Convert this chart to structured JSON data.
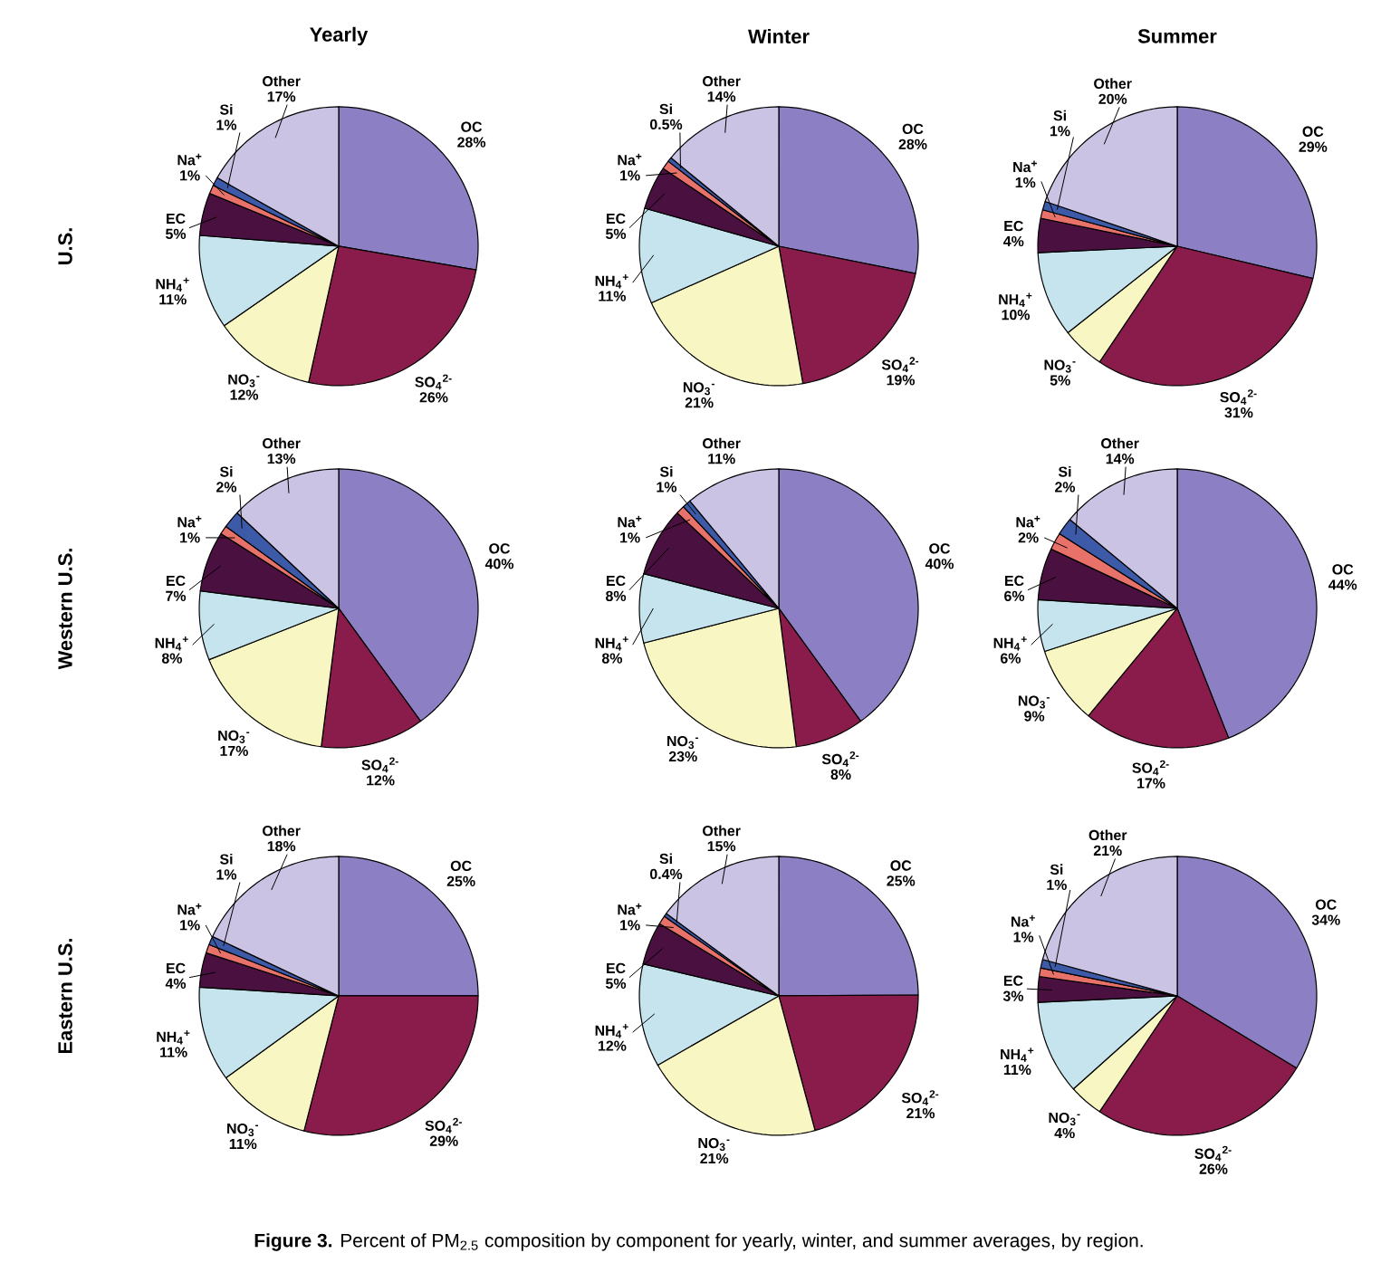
{
  "chart_data": [
    {
      "type": "pie",
      "title": "Yearly",
      "ylabel": "U.S.",
      "categories": [
        "OC",
        "SO$_{4}$$^{2-}$",
        "NO$_{3}$$^{-}$",
        "NH$_{4}$$^{+}$",
        "EC",
        "Na$^{+}$",
        "Si",
        "Other"
      ],
      "values": [
        28,
        26,
        12,
        11,
        5,
        1,
        1,
        17
      ],
      "value_labels": [
        "28%",
        "26%",
        "12%",
        "11%",
        "5%",
        "1%",
        "1%",
        "17%"
      ],
      "colors": [
        "#8c7fc4",
        "#8a1c4c",
        "#f8f6c2",
        "#c6e4ee",
        "#4a1040",
        "#e8726a",
        "#3c5aa8",
        "#cbc3e3"
      ]
    },
    {
      "type": "pie",
      "title": "Winter",
      "categories": [
        "OC",
        "SO$_{4}$$^{2-}$",
        "NO$_{3}$$^{-}$",
        "NH$_{4}$$^{+}$",
        "EC",
        "Na$^{+}$",
        "Si",
        "Other"
      ],
      "values": [
        28,
        19,
        21,
        11,
        5,
        1,
        0.5,
        14
      ],
      "value_labels": [
        "28%",
        "19%",
        "21%",
        "11%",
        "5%",
        "1%",
        "0.5%",
        "14%"
      ],
      "colors": [
        "#8c7fc4",
        "#8a1c4c",
        "#f8f6c2",
        "#c6e4ee",
        "#4a1040",
        "#e8726a",
        "#3c5aa8",
        "#cbc3e3"
      ]
    },
    {
      "type": "pie",
      "title": "Summer",
      "categories": [
        "OC",
        "SO$_{4}$$^{2-}$",
        "NO$_{3}$$^{-}$",
        "NH$_{4}$$^{+}$",
        "EC",
        "Na$^{+}$",
        "Si",
        "Other"
      ],
      "values": [
        29,
        31,
        5,
        10,
        4,
        1,
        1,
        20
      ],
      "value_labels": [
        "29%",
        "31%",
        "5%",
        "10%",
        "4%",
        "1%",
        "1%",
        "20%"
      ],
      "colors": [
        "#8c7fc4",
        "#8a1c4c",
        "#f8f6c2",
        "#c6e4ee",
        "#4a1040",
        "#e8726a",
        "#3c5aa8",
        "#cbc3e3"
      ]
    },
    {
      "type": "pie",
      "ylabel": "Western U.S.",
      "categories": [
        "OC",
        "SO$_{4}$$^{2-}$",
        "NO$_{3}$$^{-}$",
        "NH$_{4}$$^{+}$",
        "EC",
        "Na$^{+}$",
        "Si",
        "Other"
      ],
      "values": [
        40,
        12,
        17,
        8,
        7,
        1,
        2,
        13
      ],
      "value_labels": [
        "40%",
        "12%",
        "17%",
        "8%",
        "7%",
        "1%",
        "2%",
        "13%"
      ],
      "colors": [
        "#8c7fc4",
        "#8a1c4c",
        "#f8f6c2",
        "#c6e4ee",
        "#4a1040",
        "#e8726a",
        "#3c5aa8",
        "#cbc3e3"
      ]
    },
    {
      "type": "pie",
      "categories": [
        "OC",
        "SO$_{4}$$^{2-}$",
        "NO$_{3}$$^{-}$",
        "NH$_{4}$$^{+}$",
        "EC",
        "Na$^{+}$",
        "Si",
        "Other"
      ],
      "values": [
        40,
        8,
        23,
        8,
        8,
        1,
        1,
        11
      ],
      "value_labels": [
        "40%",
        "8%",
        "23%",
        "8%",
        "8%",
        "1%",
        "1%",
        "11%"
      ],
      "colors": [
        "#8c7fc4",
        "#8a1c4c",
        "#f8f6c2",
        "#c6e4ee",
        "#4a1040",
        "#e8726a",
        "#3c5aa8",
        "#cbc3e3"
      ]
    },
    {
      "type": "pie",
      "categories": [
        "OC",
        "SO$_{4}$$^{2-}$",
        "NO$_{3}$$^{-}$",
        "NH$_{4}$$^{+}$",
        "EC",
        "Na$^{+}$",
        "Si",
        "Other"
      ],
      "values": [
        44,
        17,
        9,
        6,
        6,
        2,
        2,
        14
      ],
      "value_labels": [
        "44%",
        "17%",
        "9%",
        "6%",
        "6%",
        "2%",
        "2%",
        "14%"
      ],
      "colors": [
        "#8c7fc4",
        "#8a1c4c",
        "#f8f6c2",
        "#c6e4ee",
        "#4a1040",
        "#e8726a",
        "#3c5aa8",
        "#cbc3e3"
      ]
    },
    {
      "type": "pie",
      "ylabel": "Eastern U.S.",
      "categories": [
        "OC",
        "SO$_{4}$$^{2-}$",
        "NO$_{3}$$^{-}$",
        "NH$_{4}$$^{+}$",
        "EC",
        "Na$^{+}$",
        "Si",
        "Other"
      ],
      "values": [
        25,
        29,
        11,
        11,
        4,
        1,
        1,
        18
      ],
      "value_labels": [
        "25%",
        "29%",
        "11%",
        "11%",
        "4%",
        "1%",
        "1%",
        "18%"
      ],
      "colors": [
        "#8c7fc4",
        "#8a1c4c",
        "#f8f6c2",
        "#c6e4ee",
        "#4a1040",
        "#e8726a",
        "#3c5aa8",
        "#cbc3e3"
      ]
    },
    {
      "type": "pie",
      "categories": [
        "OC",
        "SO$_{4}$$^{2-}$",
        "NO$_{3}$$^{-}$",
        "NH$_{4}$$^{+}$",
        "EC",
        "Na$^{+}$",
        "Si",
        "Other"
      ],
      "values": [
        25,
        21,
        21,
        12,
        5,
        1,
        0.4,
        15
      ],
      "value_labels": [
        "25%",
        "21%",
        "21%",
        "12%",
        "5%",
        "1%",
        "0.4%",
        "15%"
      ],
      "colors": [
        "#8c7fc4",
        "#8a1c4c",
        "#f8f6c2",
        "#c6e4ee",
        "#4a1040",
        "#e8726a",
        "#3c5aa8",
        "#cbc3e3"
      ]
    },
    {
      "type": "pie",
      "categories": [
        "OC",
        "SO$_{4}$$^{2-}$",
        "NO$_{3}$$^{-}$",
        "NH$_{4}$$^{+}$",
        "EC",
        "Na$^{+}$",
        "Si",
        "Other"
      ],
      "values": [
        34,
        26,
        4,
        11,
        3,
        1,
        1,
        21
      ],
      "value_labels": [
        "34%",
        "26%",
        "4%",
        "11%",
        "3%",
        "1%",
        "1%",
        "21%"
      ],
      "colors": [
        "#8c7fc4",
        "#8a1c4c",
        "#f8f6c2",
        "#c6e4ee",
        "#4a1040",
        "#e8726a",
        "#3c5aa8",
        "#cbc3e3"
      ],
      "annotations": [
        "**Figure 3.** Percent of PM$_{2.5}$ composition by component for yearly, winter, and summer averages, by region."
      ]
    }
  ]
}
